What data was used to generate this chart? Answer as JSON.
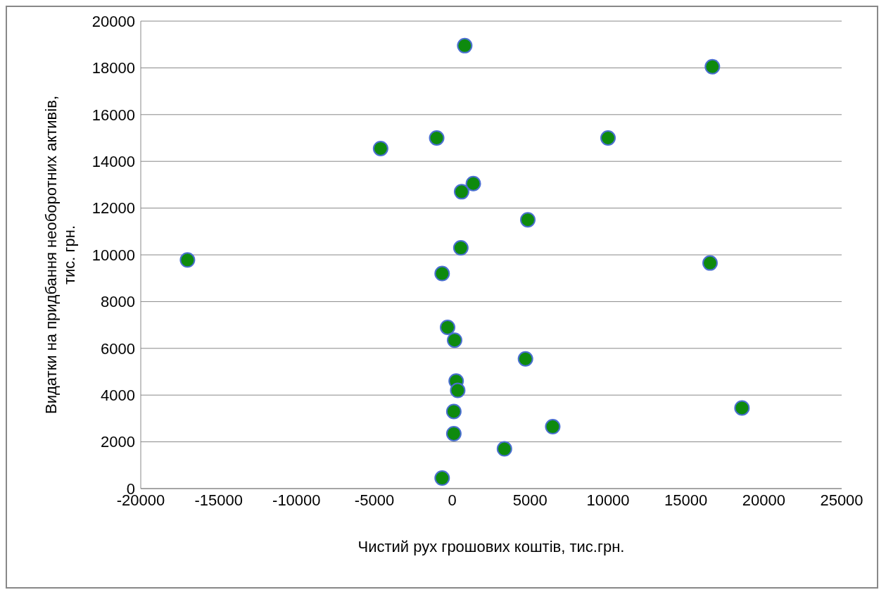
{
  "chart_data": {
    "type": "scatter",
    "xlabel": "Чистий рух грошових коштів, тис.грн.",
    "ylabel": "Видатки на придбання необоротних активів,\nтис. грн.",
    "x": [
      800,
      16700,
      -1000,
      -4600,
      10000,
      1350,
      600,
      4850,
      550,
      -17000,
      16550,
      -650,
      -300,
      150,
      4700,
      250,
      350,
      18600,
      100,
      6450,
      100,
      3350,
      -650
    ],
    "values": [
      18950,
      18050,
      15000,
      14550,
      15000,
      13050,
      12700,
      11500,
      10300,
      9780,
      9650,
      9200,
      6900,
      6350,
      5550,
      4600,
      4200,
      3450,
      3300,
      2650,
      2350,
      1700,
      450
    ],
    "color": "#0e8a0e",
    "marker": "circle",
    "grid": "y",
    "legend": false,
    "xlim": [
      -20000,
      25000
    ],
    "xticks": [
      -20000,
      -15000,
      -10000,
      -5000,
      0,
      5000,
      10000,
      15000,
      20000,
      25000
    ],
    "ylim": [
      0,
      20000
    ],
    "yticks": [
      0,
      2000,
      4000,
      6000,
      8000,
      10000,
      12000,
      14000,
      16000,
      18000,
      20000
    ]
  }
}
